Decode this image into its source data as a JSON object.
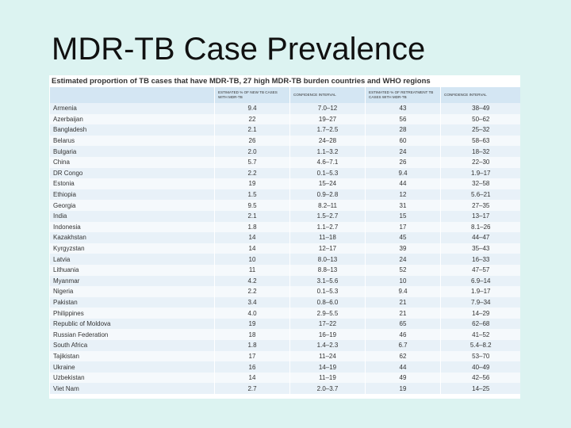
{
  "title": "MDR-TB Case Prevalence",
  "table": {
    "caption": "Estimated proportion of TB cases that have MDR-TB, 27 high MDR-TB burden countries and WHO regions",
    "header": [
      "",
      "ESTIMATED % OF NEW TB CASES WITH MDR-TB",
      "CONFIDENCE INTERVAL",
      "ESTIMATED % OF RETREATMENT TB CASES WITH MDR-TB",
      "CONFIDENCE INTERVAL"
    ],
    "rows": [
      [
        "Armenia",
        "9.4",
        "7.0–12",
        "43",
        "38–49"
      ],
      [
        "Azerbaijan",
        "22",
        "19–27",
        "56",
        "50–62"
      ],
      [
        "Bangladesh",
        "2.1",
        "1.7–2.5",
        "28",
        "25–32"
      ],
      [
        "Belarus",
        "26",
        "24–28",
        "60",
        "58–63"
      ],
      [
        "Bulgaria",
        "2.0",
        "1.1–3.2",
        "24",
        "18–32"
      ],
      [
        "China",
        "5.7",
        "4.6–7.1",
        "26",
        "22–30"
      ],
      [
        "DR Congo",
        "2.2",
        "0.1–5.3",
        "9.4",
        "1.9–17"
      ],
      [
        "Estonia",
        "19",
        "15–24",
        "44",
        "32–58"
      ],
      [
        "Ethiopia",
        "1.5",
        "0.9–2.8",
        "12",
        "5.6–21"
      ],
      [
        "Georgia",
        "9.5",
        "8.2–11",
        "31",
        "27–35"
      ],
      [
        "India",
        "2.1",
        "1.5–2.7",
        "15",
        "13–17"
      ],
      [
        "Indonesia",
        "1.8",
        "1.1–2.7",
        "17",
        "8.1–26"
      ],
      [
        "Kazakhstan",
        "14",
        "11–18",
        "45",
        "44–47"
      ],
      [
        "Kyrgyzstan",
        "14",
        "12–17",
        "39",
        "35–43"
      ],
      [
        "Latvia",
        "10",
        "8.0–13",
        "24",
        "16–33"
      ],
      [
        "Lithuania",
        "11",
        "8.8–13",
        "52",
        "47–57"
      ],
      [
        "Myanmar",
        "4.2",
        "3.1–5.6",
        "10",
        "6.9–14"
      ],
      [
        "Nigeria",
        "2.2",
        "0.1–5.3",
        "9.4",
        "1.9–17"
      ],
      [
        "Pakistan",
        "3.4",
        "0.8–6.0",
        "21",
        "7.9–34"
      ],
      [
        "Philippines",
        "4.0",
        "2.9–5.5",
        "21",
        "14–29"
      ],
      [
        "Republic of Moldova",
        "19",
        "17–22",
        "65",
        "62–68"
      ],
      [
        "Russian Federation",
        "18",
        "16–19",
        "46",
        "41–52"
      ],
      [
        "South Africa",
        "1.8",
        "1.4–2.3",
        "6.7",
        "5.4–8.2"
      ],
      [
        "Tajikistan",
        "17",
        "11–24",
        "62",
        "53–70"
      ],
      [
        "Ukraine",
        "16",
        "14–19",
        "44",
        "40–49"
      ],
      [
        "Uzbekistan",
        "14",
        "11–19",
        "49",
        "42–56"
      ],
      [
        "Viet Nam",
        "2.7",
        "2.0–3.7",
        "19",
        "14–25"
      ]
    ]
  }
}
